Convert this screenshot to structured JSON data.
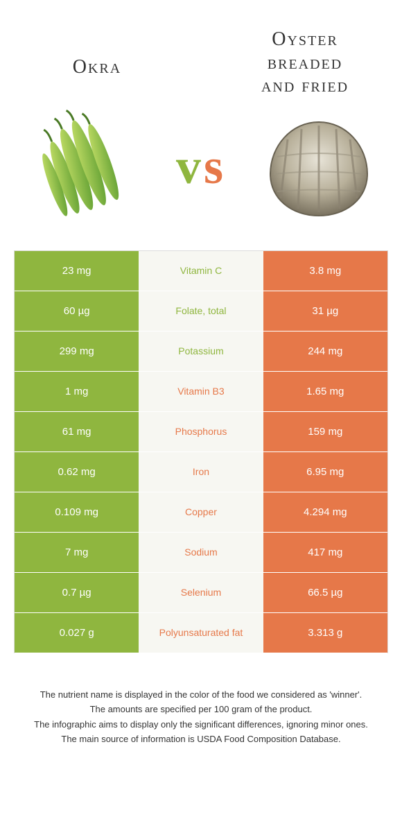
{
  "colors": {
    "left": "#8fb63f",
    "right": "#e67849",
    "mid_bg": "#f7f7f2",
    "text": "#333333"
  },
  "header": {
    "left_title": "Okra",
    "right_title_line1": "Oyster",
    "right_title_line2": "breaded",
    "right_title_line3": "and fried",
    "vs_v": "v",
    "vs_s": "s"
  },
  "rows": [
    {
      "left": "23 mg",
      "label": "Vitamin C",
      "winner": "left",
      "right": "3.8 mg"
    },
    {
      "left": "60 µg",
      "label": "Folate, total",
      "winner": "left",
      "right": "31 µg"
    },
    {
      "left": "299 mg",
      "label": "Potassium",
      "winner": "left",
      "right": "244 mg"
    },
    {
      "left": "1 mg",
      "label": "Vitamin B3",
      "winner": "right",
      "right": "1.65 mg"
    },
    {
      "left": "61 mg",
      "label": "Phosphorus",
      "winner": "right",
      "right": "159 mg"
    },
    {
      "left": "0.62 mg",
      "label": "Iron",
      "winner": "right",
      "right": "6.95 mg"
    },
    {
      "left": "0.109 mg",
      "label": "Copper",
      "winner": "right",
      "right": "4.294 mg"
    },
    {
      "left": "7 mg",
      "label": "Sodium",
      "winner": "right",
      "right": "417 mg"
    },
    {
      "left": "0.7 µg",
      "label": "Selenium",
      "winner": "right",
      "right": "66.5 µg"
    },
    {
      "left": "0.027 g",
      "label": "Polyunsaturated fat",
      "winner": "right",
      "right": "3.313 g"
    }
  ],
  "notes": [
    "The nutrient name is displayed in the color of the food we considered as 'winner'.",
    "The amounts are specified per 100 gram of the product.",
    "The infographic aims to display only the significant differences, ignoring minor ones.",
    "The main source of information is USDA Food Composition Database."
  ]
}
